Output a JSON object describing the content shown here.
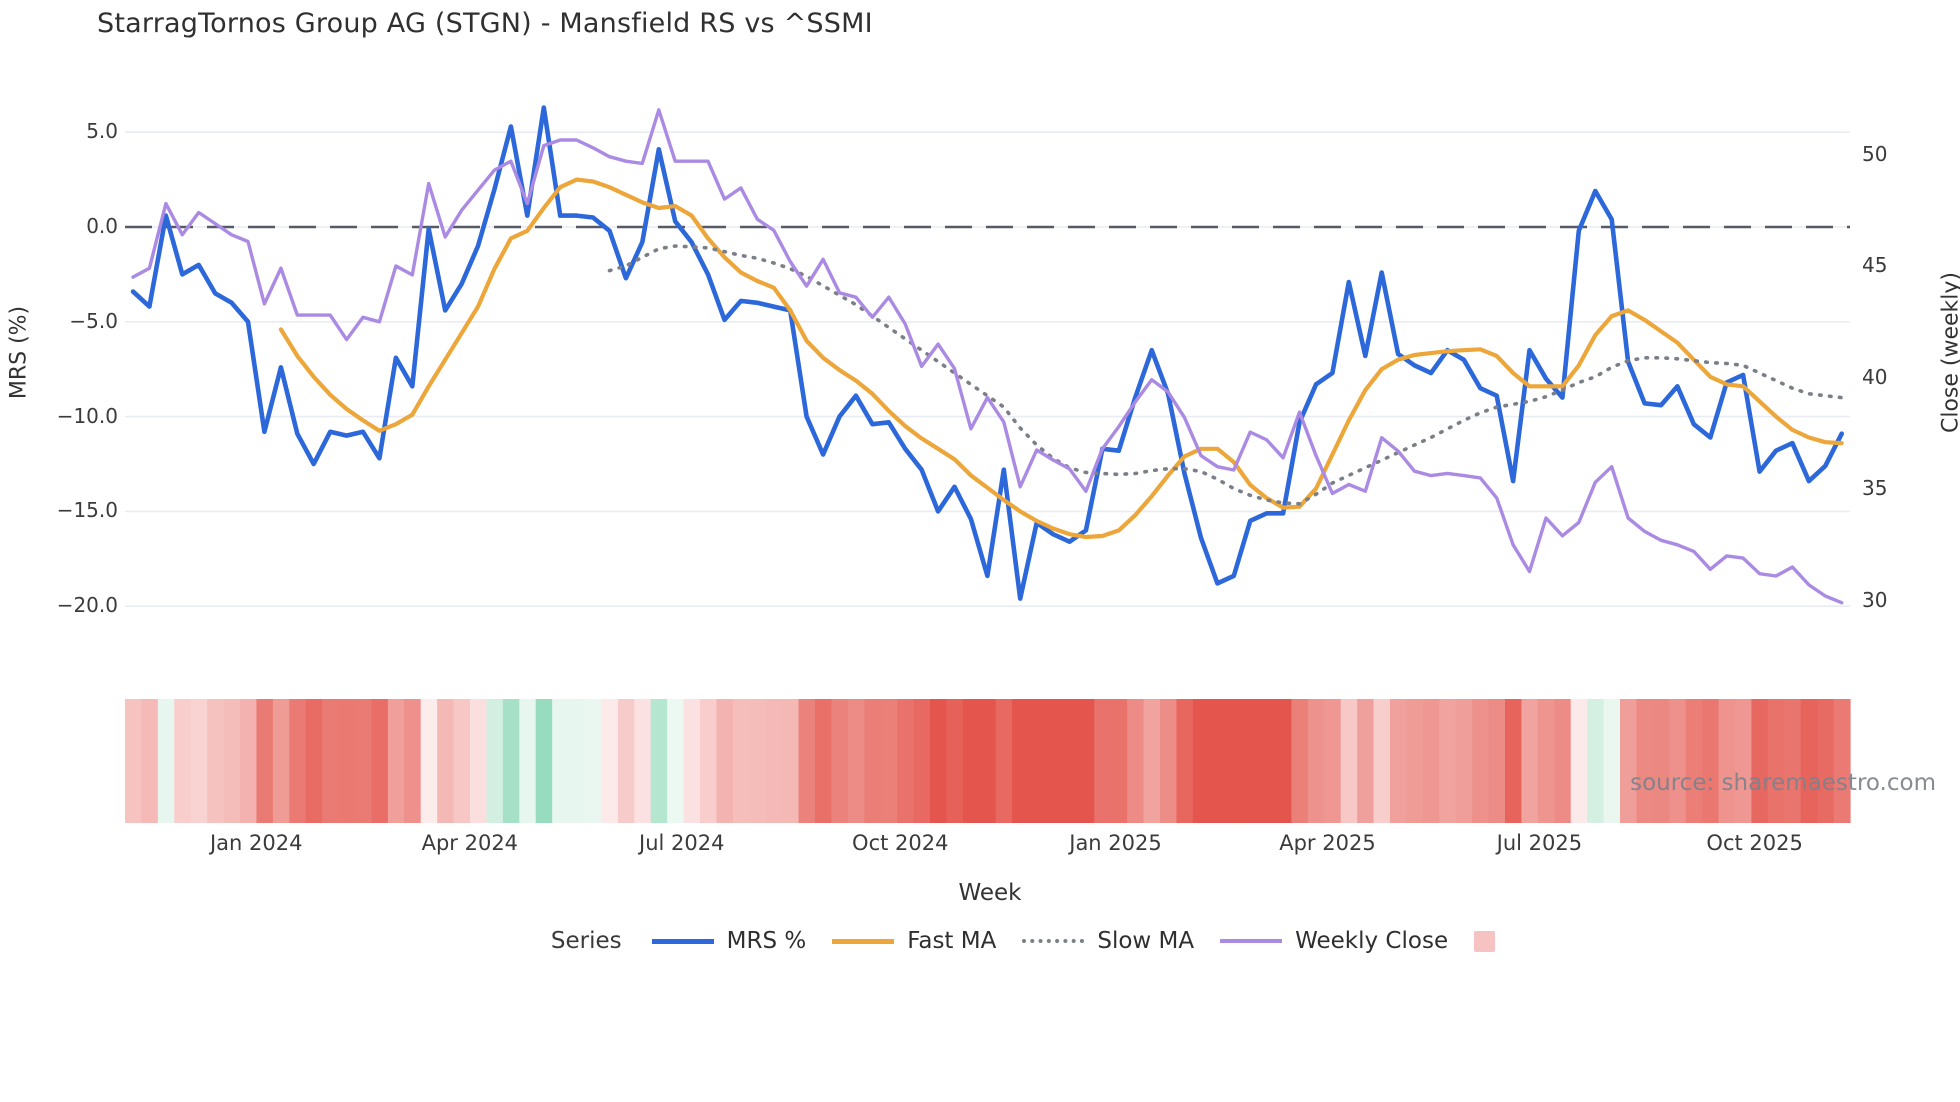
{
  "title": "StarragTornos Group AG (STGN) - Mansfield RS vs ^SSMI",
  "watermark": "source: sharemaestro.com",
  "colors": {
    "mrs_line": "#2c68d9",
    "fast_ma_line": "#eca googleapis63a",
    "fast_ma": "#eca63a",
    "slow_ma": "#7a7f88",
    "weekly_close": "#ab8ae3",
    "zero_dash": "#545b66",
    "gridline": "#e9ecf2",
    "heat_neg_strong": "#e4564d",
    "heat_neg_zero": "#fdeeee",
    "heat_pos_zero": "#f2faf6",
    "heat_pos_strong": "#8fd9b9",
    "legend_heat_swatch": "#f6c2c2",
    "text_dark": "#303030",
    "text_axis": "#3b3b3b",
    "text_watermark": "#7d828c"
  },
  "legend": {
    "series_label": "Series",
    "items": [
      {
        "label": "MRS %",
        "swatch": "solid-blue"
      },
      {
        "label": "Fast MA",
        "swatch": "solid-orange"
      },
      {
        "label": "Slow MA",
        "swatch": "dotted-gray"
      },
      {
        "label": "Weekly Close",
        "swatch": "solid-purple"
      },
      {
        "label": "",
        "swatch": "heat-box"
      }
    ]
  },
  "chart_data": {
    "type": "line",
    "title": "StarragTornos Group AG (STGN) - Mansfield RS vs ^SSMI",
    "xlabel": "Week",
    "ylabel_left": "MRS (%)",
    "ylabel_right": "Close (weekly)",
    "grid": true,
    "legend_position": "bottom",
    "x_weeks": 105,
    "x_month_ticks": [
      {
        "label": "Jan 2024",
        "week": 7.5
      },
      {
        "label": "Apr 2024",
        "week": 20.5
      },
      {
        "label": "Jul 2024",
        "week": 33.4
      },
      {
        "label": "Oct 2024",
        "week": 46.7
      },
      {
        "label": "Jan 2025",
        "week": 59.8
      },
      {
        "label": "Apr 2025",
        "week": 72.7
      },
      {
        "label": "Jul 2025",
        "week": 85.6
      },
      {
        "label": "Oct 2025",
        "week": 98.7
      }
    ],
    "left_axis": {
      "ticks": [
        5.0,
        0.0,
        -5.0,
        -10.0,
        -15.0,
        -20.0
      ],
      "range": [
        -22.5,
        7.3
      ]
    },
    "right_axis": {
      "ticks": [
        50,
        45,
        40,
        35,
        30
      ],
      "range": [
        28.3,
        52.5
      ]
    },
    "zero_reference_line": 0.0,
    "series": [
      {
        "name": "MRS %",
        "axis": "left",
        "style": "solid",
        "color": "#2c68d9",
        "width": 4.6,
        "values": [
          -3.4,
          -4.2,
          0.6,
          -2.5,
          -2.0,
          -3.5,
          -4.0,
          -5.0,
          -10.8,
          -7.4,
          -10.9,
          -12.5,
          -10.8,
          -11.0,
          -10.8,
          -12.2,
          -6.9,
          -8.4,
          -0.1,
          -4.4,
          -3.0,
          -1.0,
          2.0,
          5.3,
          0.6,
          6.3,
          0.6,
          0.6,
          0.5,
          -0.2,
          -2.7,
          -0.8,
          4.1,
          0.3,
          -0.8,
          -2.5,
          -4.9,
          -3.9,
          -4.0,
          -4.2,
          -4.4,
          -10.0,
          -12.0,
          -10.0,
          -8.9,
          -10.4,
          -10.3,
          -11.7,
          -12.8,
          -15.0,
          -13.7,
          -15.4,
          -18.4,
          -12.8,
          -19.6,
          -15.6,
          -16.2,
          -16.6,
          -16.0,
          -11.7,
          -11.8,
          -9.0,
          -6.5,
          -8.8,
          -13.0,
          -16.4,
          -18.8,
          -18.4,
          -15.5,
          -15.1,
          -15.1,
          -10.3,
          -8.3,
          -7.7,
          -2.9,
          -6.8,
          -2.4,
          -6.7,
          -7.3,
          -7.7,
          -6.5,
          -7.0,
          -8.5,
          -8.9,
          -13.4,
          -6.5,
          -8.0,
          -9.0,
          -0.2,
          1.9,
          0.4,
          -7.1,
          -9.3,
          -9.4,
          -8.4,
          -10.4,
          -11.1,
          -8.2,
          -7.8,
          -12.9,
          -11.8,
          -11.4,
          -13.4,
          -12.6,
          -10.9
        ]
      },
      {
        "name": "Fast MA",
        "axis": "left",
        "style": "solid",
        "color": "#eca63a",
        "width": 4.2,
        "values": [
          null,
          null,
          null,
          null,
          null,
          null,
          null,
          null,
          null,
          -5.4,
          -6.8,
          -7.9,
          -8.85,
          -9.6,
          -10.2,
          -10.75,
          -10.4,
          -9.9,
          -8.4,
          -7.0,
          -5.6,
          -4.2,
          -2.2,
          -0.6,
          -0.2,
          1.0,
          2.1,
          2.5,
          2.4,
          2.1,
          1.7,
          1.3,
          1.0,
          1.1,
          0.6,
          -0.6,
          -1.6,
          -2.4,
          -2.85,
          -3.2,
          -4.4,
          -6.0,
          -6.9,
          -7.55,
          -8.1,
          -8.8,
          -9.7,
          -10.5,
          -11.15,
          -11.7,
          -12.25,
          -13.1,
          -13.75,
          -14.4,
          -15.0,
          -15.5,
          -15.9,
          -16.2,
          -16.35,
          -16.3,
          -16.0,
          -15.2,
          -14.2,
          -13.1,
          -12.1,
          -11.7,
          -11.7,
          -12.4,
          -13.6,
          -14.3,
          -14.8,
          -14.75,
          -13.8,
          -12.0,
          -10.2,
          -8.6,
          -7.5,
          -7.0,
          -6.75,
          -6.65,
          -6.55,
          -6.5,
          -6.45,
          -6.8,
          -7.7,
          -8.4,
          -8.4,
          -8.4,
          -7.3,
          -5.7,
          -4.7,
          -4.4,
          -4.9,
          -5.5,
          -6.1,
          -7.0,
          -7.9,
          -8.3,
          -8.4,
          -9.2,
          -10.0,
          -10.7,
          -11.1,
          -11.35,
          -11.4
        ]
      },
      {
        "name": "Slow MA",
        "axis": "left",
        "style": "dotted",
        "color": "#7a7f88",
        "width": 3.6,
        "values": [
          null,
          null,
          null,
          null,
          null,
          null,
          null,
          null,
          null,
          null,
          null,
          null,
          null,
          null,
          null,
          null,
          null,
          null,
          null,
          null,
          null,
          null,
          null,
          null,
          null,
          null,
          null,
          null,
          null,
          -2.3,
          -2.05,
          -1.6,
          -1.15,
          -1.0,
          -1.05,
          -1.1,
          -1.3,
          -1.5,
          -1.65,
          -1.9,
          -2.2,
          -2.6,
          -3.1,
          -3.6,
          -4.1,
          -4.7,
          -5.3,
          -5.9,
          -6.5,
          -7.1,
          -7.7,
          -8.3,
          -8.9,
          -9.5,
          -10.6,
          -11.5,
          -12.2,
          -12.7,
          -12.95,
          -13.0,
          -13.05,
          -13.0,
          -12.85,
          -12.75,
          -12.75,
          -12.9,
          -13.3,
          -13.8,
          -14.15,
          -14.4,
          -14.55,
          -14.6,
          -14.1,
          -13.5,
          -13.1,
          -12.7,
          -12.3,
          -11.9,
          -11.5,
          -11.1,
          -10.65,
          -10.2,
          -9.8,
          -9.5,
          -9.35,
          -9.2,
          -8.95,
          -8.6,
          -8.2,
          -7.9,
          -7.4,
          -7.05,
          -6.9,
          -6.9,
          -6.95,
          -7.05,
          -7.15,
          -7.2,
          -7.3,
          -7.7,
          -8.1,
          -8.5,
          -8.8,
          -8.9,
          -9.0
        ]
      },
      {
        "name": "Weekly Close",
        "axis": "right",
        "style": "solid",
        "color": "#ab8ae3",
        "width": 3.4,
        "values": [
          44.5,
          44.9,
          47.8,
          46.4,
          47.4,
          46.9,
          46.4,
          46.1,
          43.3,
          44.9,
          42.8,
          42.8,
          42.8,
          41.7,
          42.7,
          42.5,
          45.0,
          44.6,
          48.7,
          46.3,
          47.5,
          48.4,
          49.3,
          49.7,
          47.8,
          50.4,
          50.65,
          50.65,
          50.3,
          49.9,
          49.7,
          49.6,
          52.0,
          49.7,
          49.7,
          49.7,
          48.0,
          48.5,
          47.1,
          46.6,
          45.2,
          44.1,
          45.3,
          43.8,
          43.6,
          42.7,
          43.6,
          42.4,
          40.5,
          41.5,
          40.4,
          37.7,
          39.1,
          38.0,
          35.1,
          36.75,
          36.3,
          35.9,
          34.9,
          36.8,
          37.8,
          38.9,
          39.9,
          39.35,
          38.2,
          36.5,
          36.0,
          35.85,
          37.55,
          37.2,
          36.4,
          38.45,
          36.5,
          34.8,
          35.2,
          34.9,
          37.3,
          36.7,
          35.8,
          35.6,
          35.7,
          35.6,
          35.5,
          34.6,
          32.5,
          31.3,
          33.7,
          32.9,
          33.5,
          35.3,
          36.0,
          33.7,
          33.1,
          32.7,
          32.5,
          32.2,
          31.4,
          32.0,
          31.9,
          31.2,
          31.1,
          31.5,
          30.7,
          30.2,
          29.9
        ]
      }
    ],
    "heat_strip": {
      "description": "weekly heat cells below chart, color-mapped from MRS % (red = negative, green = positive)",
      "source_series": "MRS %"
    }
  }
}
